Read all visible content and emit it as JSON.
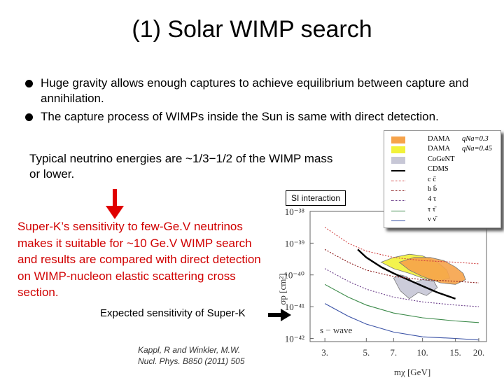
{
  "slide": {
    "title": "(1) Solar WIMP search",
    "bullets": [
      "Huge gravity allows enough captures to achieve equilibrium between capture and annihilation.",
      "The capture process of WIMPs inside the Sun is same with direct detection."
    ],
    "energy_note": "Typical neutrino energies are ~1/3−1/2 of the WIMP mass or lower.",
    "si_label": "SI interaction",
    "superk_note": "Super-K’s sensitivity to few-Ge.V neutrinos makes it suitable for ~10 Ge.V WIMP search and results are compared with direct detection on WIMP-nucleon elastic scattering cross section.",
    "expected_label": "Expected sensitivity of Super-K",
    "citation_line1": "Kappl, R and Winkler, M.W.",
    "citation_line2": "Nucl. Phys. B850 (2011) 505",
    "colors": {
      "red_arrow": "#e00000",
      "red_text": "#d00000"
    }
  },
  "chart_data": {
    "type": "line",
    "x_scale": "log",
    "y_scale": "log",
    "xlabel": "mχ [GeV]",
    "ylabel": "σp [cm²]",
    "x_ticks": [
      "3.",
      "5.",
      "7.",
      "10.",
      "15.",
      "20."
    ],
    "x_tick_values": [
      3,
      5,
      7,
      10,
      15,
      20
    ],
    "y_ticks": [
      "10⁻³⁸",
      "10⁻³⁹",
      "10⁻⁴⁰",
      "10⁻⁴¹",
      "10⁻⁴²"
    ],
    "y_tick_exponents": [
      -38,
      -39,
      -40,
      -41,
      -42
    ],
    "xlim": [
      2.5,
      22
    ],
    "ylim_exp": [
      -42.1,
      -38
    ],
    "annotation": "s − wave",
    "legend": [
      {
        "label": "DAMA",
        "q": "qNa=0.3",
        "kind": "fill",
        "color": "#f6a34a"
      },
      {
        "label": "DAMA",
        "q": "qNa=0.45",
        "kind": "fill",
        "color": "#f2f23a"
      },
      {
        "label": "CoGeNT",
        "q": "",
        "kind": "fill",
        "color": "#c7c7d6"
      },
      {
        "label": "CDMS",
        "q": "",
        "kind": "line",
        "color": "#000000"
      },
      {
        "label": "c c̄",
        "q": "",
        "kind": "dotted",
        "color": "#d04040"
      },
      {
        "label": "b b̄",
        "q": "",
        "kind": "dotted",
        "color": "#8a1a1a"
      },
      {
        "label": "4 τ",
        "q": "",
        "kind": "dotted",
        "color": "#6a3d8a"
      },
      {
        "label": "τ τ̄",
        "q": "",
        "kind": "line",
        "color": "#3c8a4a"
      },
      {
        "label": "ν ν̄",
        "q": "",
        "kind": "line",
        "color": "#3a52a6"
      }
    ],
    "series": [
      {
        "kind": "line",
        "color": "#000000",
        "x": [
          4.5,
          5,
          6,
          7,
          8,
          10,
          12,
          15
        ],
        "y_exp": [
          -39.2,
          -39.45,
          -39.75,
          -39.95,
          -40.1,
          -40.35,
          -40.55,
          -40.75
        ]
      },
      {
        "kind": "dotted",
        "color": "#d04040",
        "x": [
          3,
          4,
          5,
          7,
          10,
          15,
          20
        ],
        "y_exp": [
          -38.5,
          -39.0,
          -39.25,
          -39.45,
          -39.55,
          -39.6,
          -39.65
        ]
      },
      {
        "kind": "dotted",
        "color": "#8a1a1a",
        "x": [
          3,
          4,
          5,
          7,
          10,
          15,
          20
        ],
        "y_exp": [
          -39.2,
          -39.6,
          -39.85,
          -40.05,
          -40.15,
          -40.2,
          -40.25
        ]
      },
      {
        "kind": "dotted",
        "color": "#6a3d8a",
        "x": [
          3,
          4,
          5,
          7,
          10,
          15,
          20
        ],
        "y_exp": [
          -39.8,
          -40.2,
          -40.45,
          -40.7,
          -40.85,
          -40.95,
          -41.0
        ]
      },
      {
        "kind": "line",
        "color": "#3c8a4a",
        "x": [
          3,
          4,
          5,
          7,
          10,
          15,
          20
        ],
        "y_exp": [
          -40.3,
          -40.7,
          -40.95,
          -41.2,
          -41.35,
          -41.45,
          -41.5
        ]
      },
      {
        "kind": "line",
        "color": "#3a52a6",
        "x": [
          3,
          4,
          5,
          7,
          10,
          15,
          20
        ],
        "y_exp": [
          -40.9,
          -41.3,
          -41.55,
          -41.8,
          -41.95,
          -42.0,
          -42.05
        ]
      }
    ],
    "regions": [
      {
        "name": "DAMA q=0.45",
        "color": "#f2f23a",
        "x": [
          6,
          7,
          8.5,
          10,
          12,
          13.5,
          14,
          12,
          10,
          8.5,
          7
        ],
        "y_exp": [
          -39.6,
          -39.45,
          -39.35,
          -39.4,
          -39.6,
          -39.85,
          -40.1,
          -40.2,
          -40.1,
          -39.95,
          -39.8
        ]
      },
      {
        "name": "DAMA q=0.3",
        "color": "#f6a34a",
        "x": [
          7.5,
          9,
          11,
          13,
          15,
          16.5,
          17,
          15,
          12.5,
          10,
          8.5
        ],
        "y_exp": [
          -39.6,
          -39.45,
          -39.45,
          -39.55,
          -39.75,
          -39.95,
          -40.15,
          -40.3,
          -40.25,
          -40.05,
          -39.85
        ]
      },
      {
        "name": "CoGeNT",
        "color": "#c7c7d6",
        "x": [
          7,
          7.6,
          8.2,
          9,
          10,
          11.5,
          12,
          10.5,
          9.5,
          8.5,
          7.6
        ],
        "y_exp": [
          -40.1,
          -40.0,
          -40.05,
          -40.25,
          -40.15,
          -40.2,
          -40.4,
          -40.65,
          -40.55,
          -40.75,
          -40.5
        ]
      }
    ]
  }
}
